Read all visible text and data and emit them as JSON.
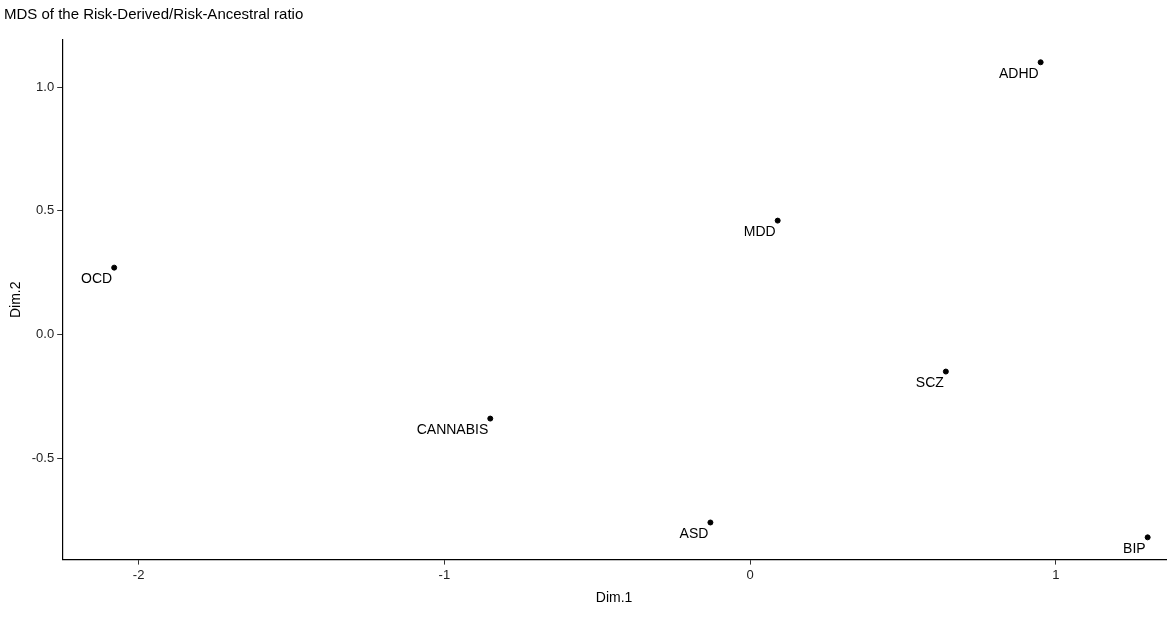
{
  "chart_data": {
    "type": "scatter",
    "title": "MDS of the Risk-Derived/Risk-Ancestral ratio",
    "xlabel": "Dim.1",
    "ylabel": "Dim.2",
    "x": [
      0.95,
      0.09,
      -2.08,
      0.64,
      -0.85,
      -0.13,
      1.3
    ],
    "values": [
      1.1,
      0.46,
      0.27,
      -0.15,
      -0.34,
      -0.76,
      -0.82
    ],
    "color": "#000000",
    "marker": "circle",
    "grid": false,
    "legend": false,
    "xlim": [
      -2.25,
      1.36
    ],
    "ylim": [
      -0.91,
      1.19
    ],
    "xticks": [
      -2,
      -1,
      0,
      1
    ],
    "yticks": [
      {
        "value": -0.5,
        "label": "-0.5"
      },
      {
        "value": 0,
        "label": "0.0"
      },
      {
        "value": 0.5,
        "label": "0.5"
      },
      {
        "value": 1,
        "label": "1.0"
      }
    ],
    "annotations": [
      {
        "text": "ADHD",
        "x": 0.95,
        "y": 1.1
      },
      {
        "text": "MDD",
        "x": 0.09,
        "y": 0.46
      },
      {
        "text": "OCD",
        "x": -2.08,
        "y": 0.27
      },
      {
        "text": "SCZ",
        "x": 0.64,
        "y": -0.15
      },
      {
        "text": "CANNABIS",
        "x": -0.85,
        "y": -0.34
      },
      {
        "text": "ASD",
        "x": -0.13,
        "y": -0.76
      },
      {
        "text": "BIP",
        "x": 1.3,
        "y": -0.82
      }
    ]
  }
}
